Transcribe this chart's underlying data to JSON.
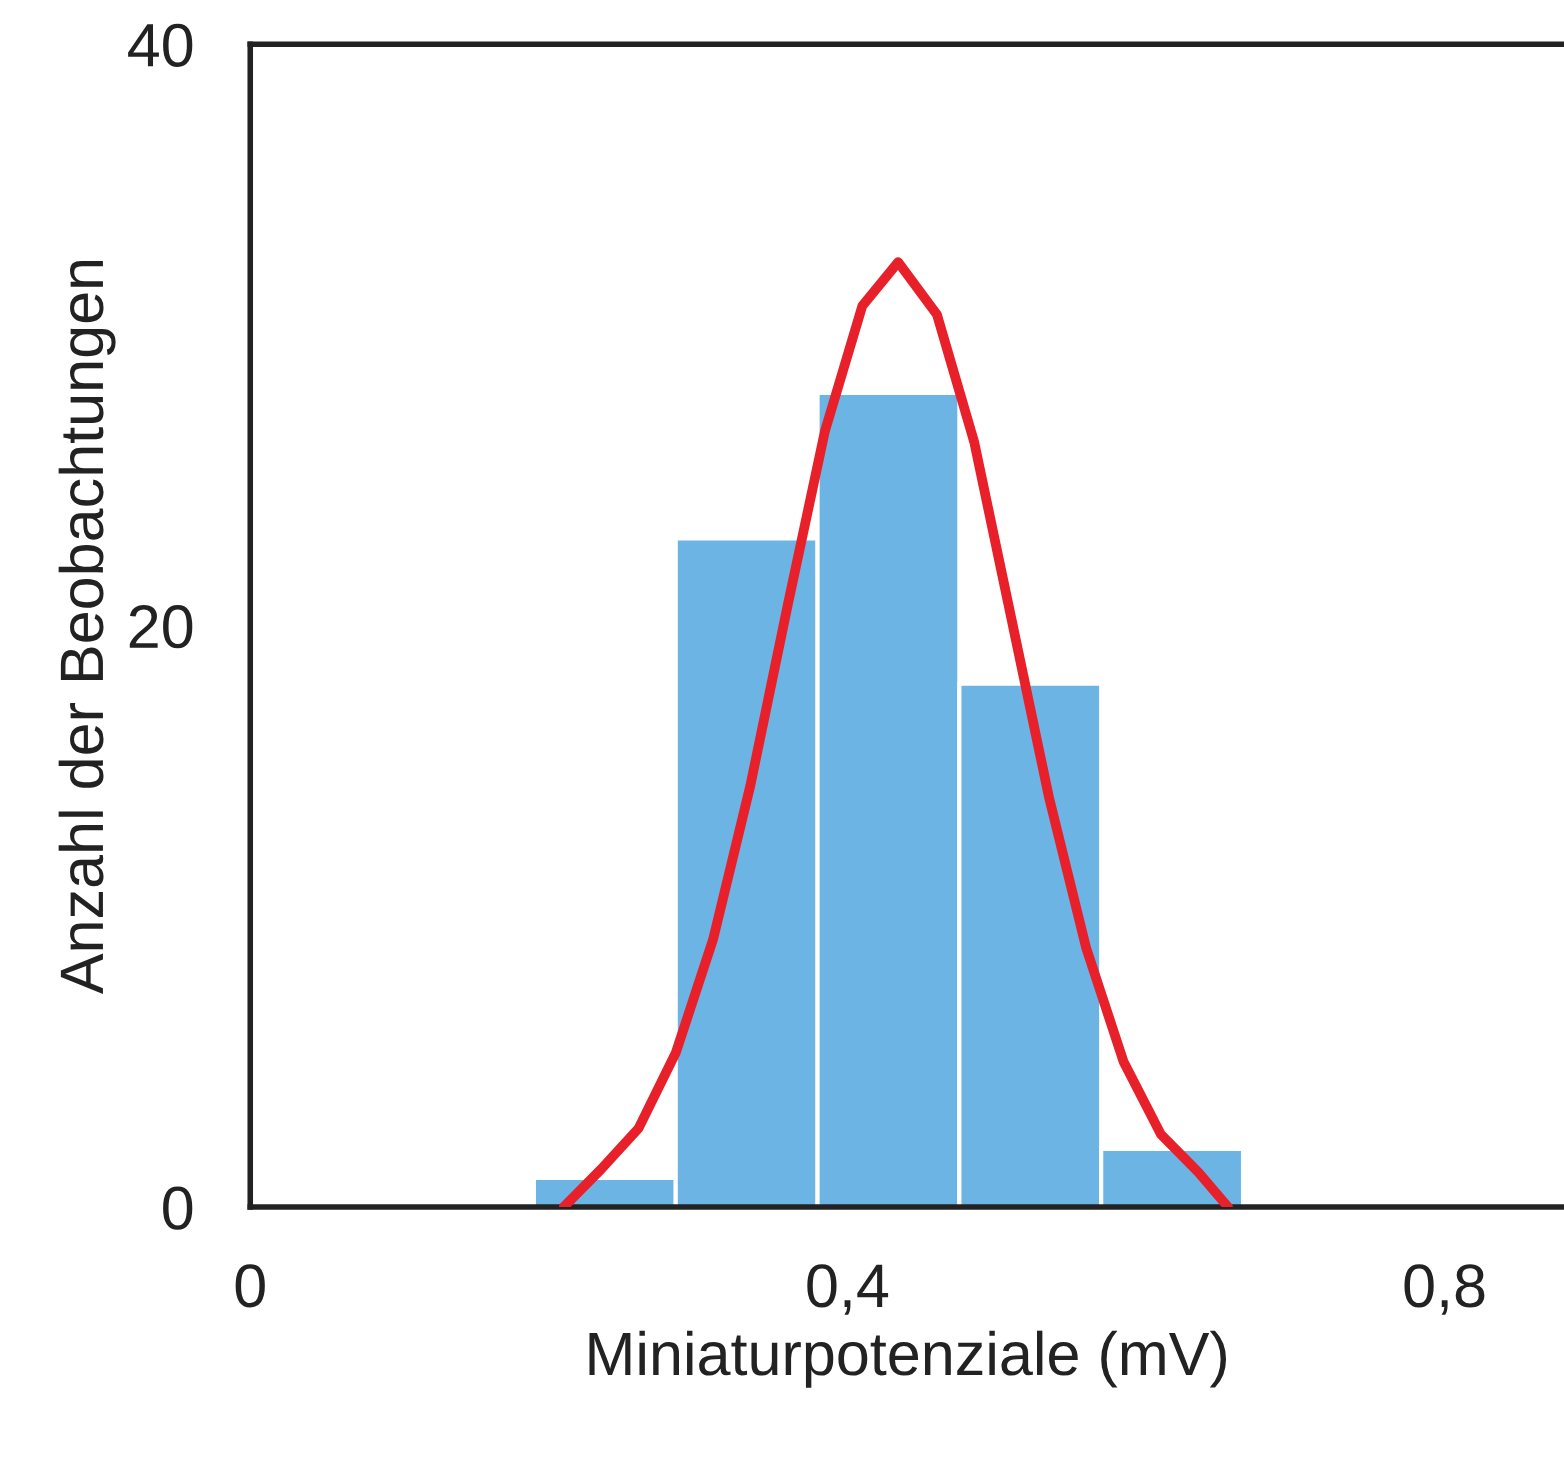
{
  "chart_data": {
    "type": "histogram",
    "xlabel": "Miniaturpotenziale (mV)",
    "ylabel": "Anzahl der Beobachtungen",
    "bins": [
      0.19,
      0.285,
      0.38,
      0.475,
      0.57,
      0.665
    ],
    "values": [
      1,
      23,
      28,
      18,
      2
    ],
    "color": "#6cb4e4",
    "series": [
      {
        "type": "line",
        "color": "#e8202a",
        "x": [
          0.21,
          0.235,
          0.26,
          0.285,
          0.31,
          0.335,
          0.36,
          0.385,
          0.41,
          0.434,
          0.46,
          0.485,
          0.51,
          0.535,
          0.56,
          0.585,
          0.61,
          0.635,
          0.655
        ],
        "values": [
          0,
          1.3,
          2.7,
          5.3,
          9.2,
          14.5,
          20.7,
          26.7,
          31.0,
          32.5,
          30.7,
          26.3,
          20.2,
          14.1,
          8.9,
          5.0,
          2.5,
          1.2,
          0
        ]
      }
    ],
    "xlim": [
      0,
      0.88
    ],
    "xticks": [
      0,
      {
        "value": 0.4,
        "label": "0,4"
      },
      {
        "value": 0.8,
        "label": "0,8"
      }
    ],
    "ylim": [
      0,
      40
    ],
    "yticks": [
      0,
      20,
      40
    ],
    "grid": false,
    "legend": false
  }
}
